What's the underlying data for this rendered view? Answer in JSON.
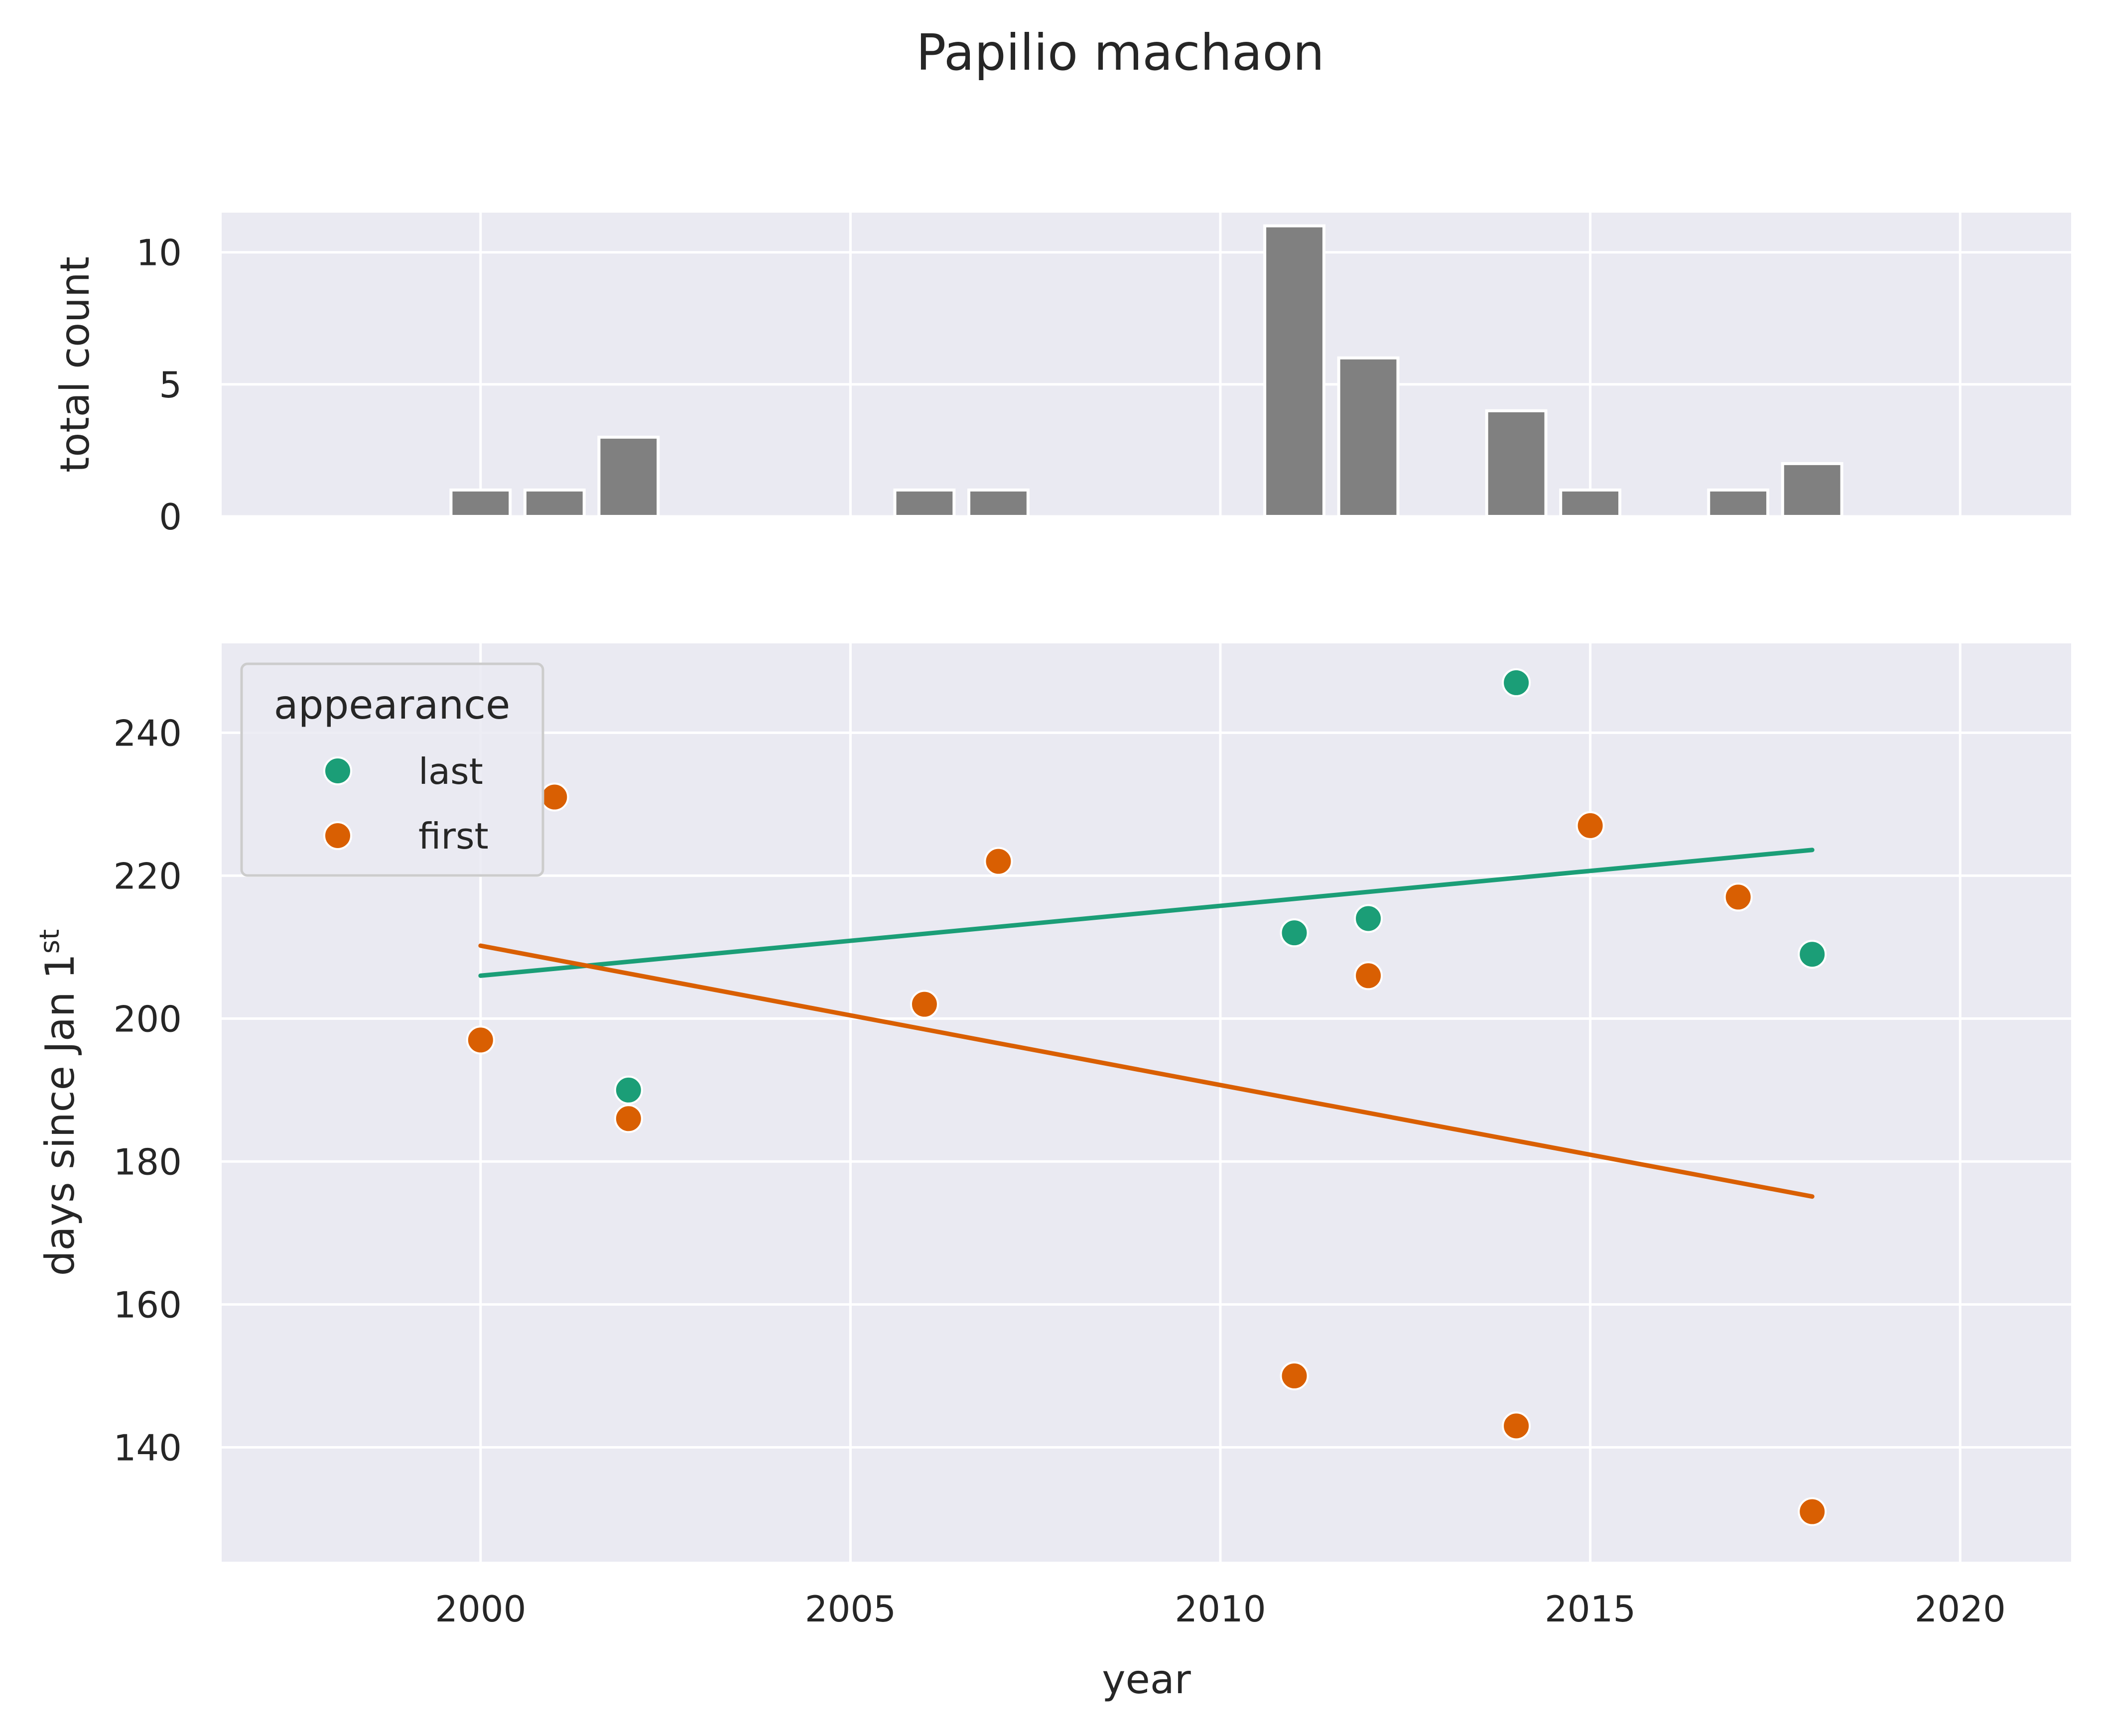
{
  "title": "Papilio machaon",
  "colors": {
    "panel_bg": "#eaeaf2",
    "grid": "#ffffff",
    "bar": "#808080",
    "last": "#1b9e77",
    "first": "#d95f02"
  },
  "chart_data": [
    {
      "type": "bar",
      "ylabel": "total count",
      "x": [
        2000,
        2001,
        2002,
        2006,
        2007,
        2011,
        2012,
        2014,
        2015,
        2017,
        2018
      ],
      "values": [
        1,
        1,
        3,
        1,
        1,
        11,
        6,
        4,
        1,
        1,
        2
      ],
      "xlim": [
        1996.5,
        2021.5
      ],
      "ylim": [
        0,
        11.5
      ],
      "yticks": [
        0,
        5,
        10
      ],
      "grid": true
    },
    {
      "type": "scatter",
      "xlabel": "year",
      "ylabel": {
        "main": "days since Jan 1",
        "sup": "st"
      },
      "xlim": [
        1996.5,
        2021.5
      ],
      "ylim": [
        124,
        252.5
      ],
      "xticks": [
        2000,
        2005,
        2010,
        2015,
        2020
      ],
      "yticks": [
        140,
        160,
        180,
        200,
        220,
        240
      ],
      "grid": true,
      "legend": {
        "title": "appearance",
        "position": "upper-left"
      },
      "series": [
        {
          "name": "last",
          "color": "#1b9e77",
          "x": [
            2002,
            2011,
            2012,
            2014,
            2018
          ],
          "y": [
            190,
            212,
            214,
            247,
            209
          ],
          "trend": {
            "x": [
              2000,
              2018
            ],
            "y": [
              206,
              223.6
            ]
          }
        },
        {
          "name": "first",
          "color": "#d95f02",
          "x": [
            2000,
            2001,
            2002,
            2006,
            2007,
            2011,
            2011,
            2012,
            2014,
            2015,
            2017,
            2018
          ],
          "y": [
            197,
            231,
            186,
            202,
            222,
            150,
            212,
            206,
            143,
            227,
            217,
            131
          ],
          "trend": {
            "x": [
              2000,
              2018
            ],
            "y": [
              210.2,
              175.1
            ]
          }
        }
      ]
    }
  ]
}
